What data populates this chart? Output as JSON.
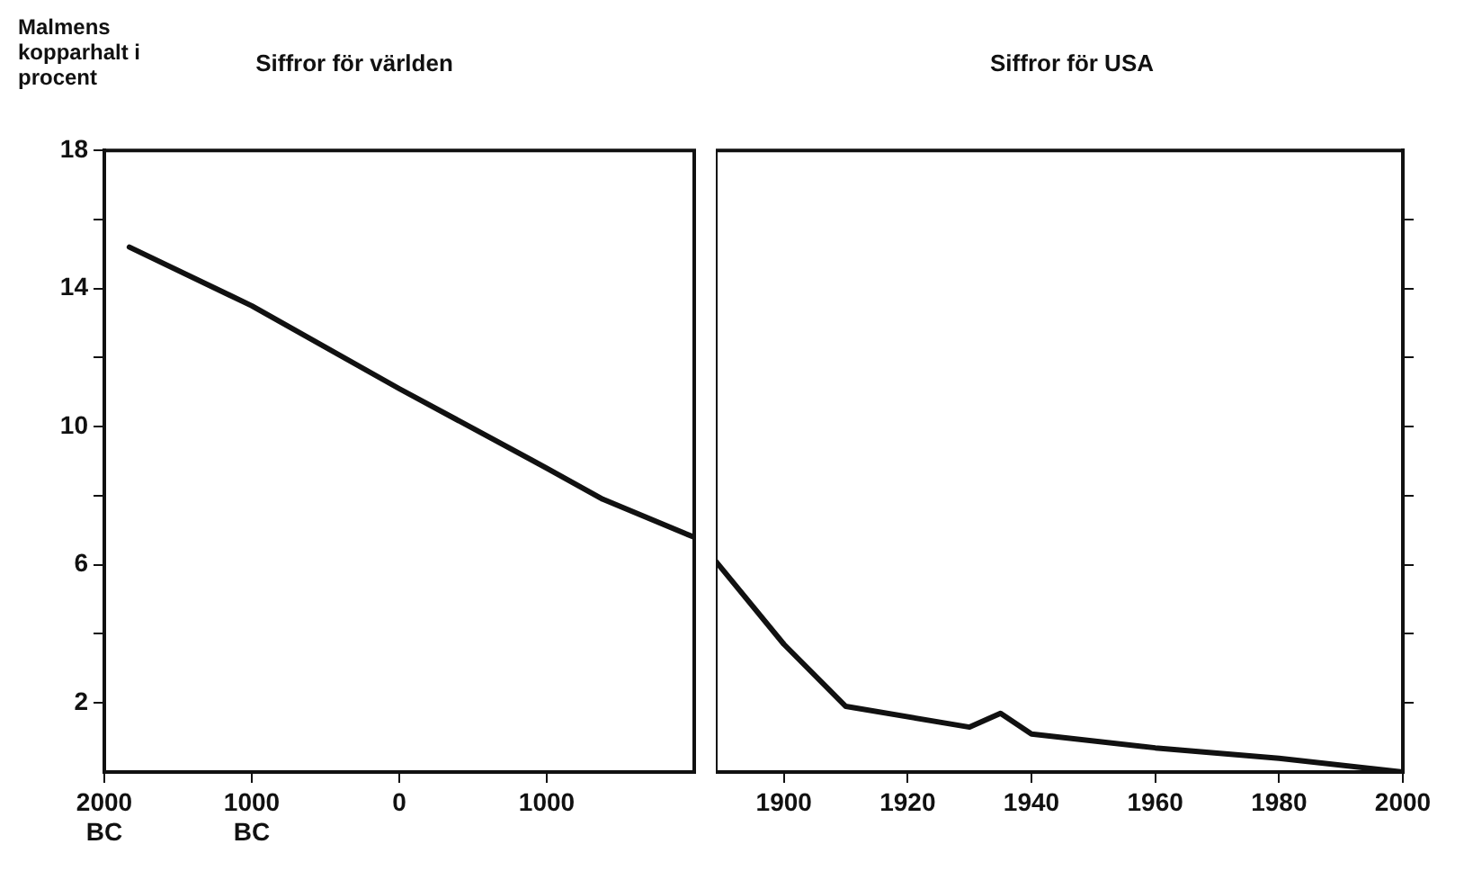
{
  "chart_data": [
    {
      "type": "line",
      "title": "Siffror för världen",
      "ylabel": "Malmens kopparhalt i procent",
      "series": [
        {
          "color": "#111111",
          "x": [
            -1830,
            -1000,
            0,
            1000,
            1380,
            2000
          ],
          "values": [
            15.2,
            13.5,
            11.1,
            8.8,
            7.9,
            6.8
          ]
        }
      ],
      "xlim": [
        -2000,
        2000
      ],
      "xticks": [
        {
          "value": -2000,
          "label": "2000 BC"
        },
        {
          "value": -1000,
          "label": "1000 BC"
        },
        0,
        1000
      ],
      "ylim": [
        0,
        18
      ],
      "yticks": [
        {
          "value": 2,
          "label": "2"
        },
        {
          "value": 4,
          "label": null
        },
        6,
        {
          "value": 8,
          "label": null
        },
        10,
        {
          "value": 12,
          "label": null
        },
        14,
        {
          "value": 16,
          "label": null
        },
        18
      ],
      "grid": false,
      "legend": false,
      "marker": "none",
      "line_style": "solid"
    },
    {
      "type": "line",
      "title": "Siffror för USA",
      "series": [
        {
          "color": "#111111",
          "x": [
            1889,
            1900,
            1910,
            1930,
            1935,
            1940,
            1960,
            1980,
            2000
          ],
          "values": [
            6.1,
            3.7,
            1.9,
            1.3,
            1.7,
            1.1,
            0.7,
            0.4,
            0
          ]
        }
      ],
      "xlim": [
        1889,
        2000
      ],
      "xticks": [
        1900,
        1920,
        1940,
        1960,
        1980,
        2000
      ],
      "ylim": [
        0,
        18
      ],
      "yticks": [
        {
          "value": 2,
          "label": null
        },
        {
          "value": 4,
          "label": null
        },
        {
          "value": 6,
          "label": null
        },
        {
          "value": 8,
          "label": null
        },
        {
          "value": 10,
          "label": null
        },
        {
          "value": 12,
          "label": null
        },
        {
          "value": 14,
          "label": null
        },
        {
          "value": 16,
          "label": null
        }
      ],
      "tick_labels": "x",
      "grid": false,
      "legend": false,
      "marker": "none",
      "line_style": "solid"
    }
  ]
}
